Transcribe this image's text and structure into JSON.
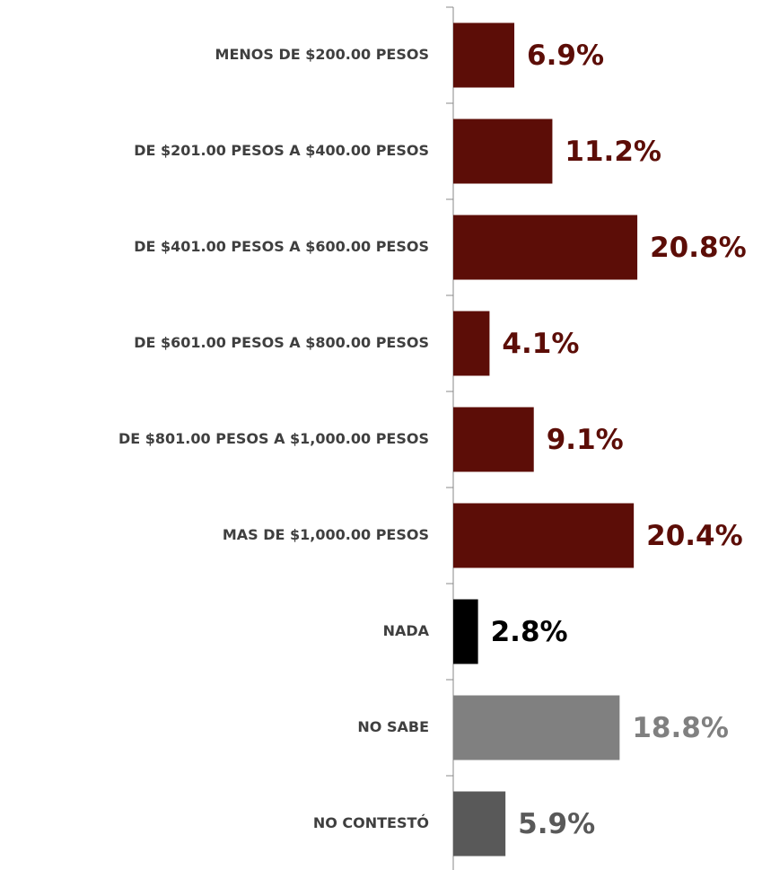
{
  "chart_data": {
    "type": "hbar",
    "categories": [
      "MENOS DE $200.00 PESOS",
      "DE $201.00 PESOS A $400.00 PESOS",
      "DE $401.00 PESOS A $600.00 PESOS",
      "DE $601.00 PESOS A $800.00 PESOS",
      "DE $801.00 PESOS A $1,000.00 PESOS",
      "MAS DE $1,000.00 PESOS",
      "NADA",
      "NO SABE",
      "NO CONTESTÓ"
    ],
    "values": [
      6.9,
      11.2,
      20.8,
      4.1,
      9.1,
      20.4,
      2.8,
      18.8,
      5.9
    ],
    "value_labels": [
      "6.9%",
      "11.2%",
      "20.8%",
      "4.1%",
      "9.1%",
      "20.4%",
      "2.8%",
      "18.8%",
      "5.9%"
    ],
    "colors": [
      "#5c0d07",
      "#5c0d07",
      "#5c0d07",
      "#5c0d07",
      "#5c0d07",
      "#5c0d07",
      "#000000",
      "#808080",
      "#595959"
    ]
  }
}
